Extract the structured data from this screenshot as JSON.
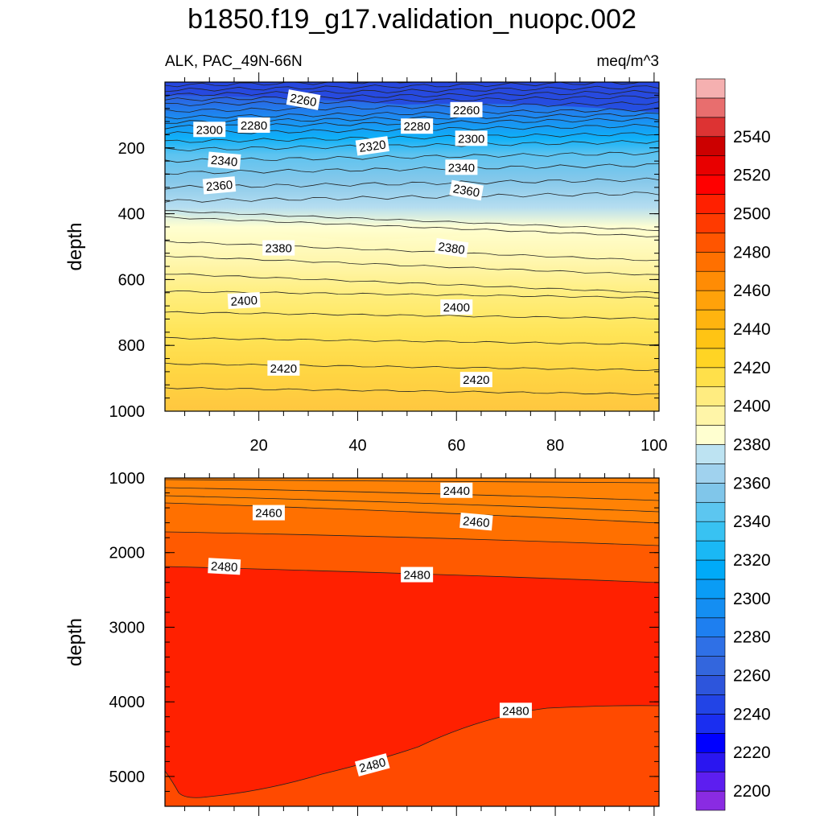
{
  "chart_data": {
    "type": "contour",
    "title": "b1850.f19_g17.validation_nuopc.002",
    "subtitle_left": "ALK, PAC_49N-66N",
    "subtitle_right": "meq/m^3",
    "x_ticks": [
      20,
      40,
      60,
      80,
      100
    ],
    "x_tick_labels": [
      "20",
      "40",
      "60",
      "80",
      "100"
    ],
    "xlim": [
      1,
      101
    ],
    "panels": [
      {
        "name": "upper",
        "ylabel": "depth",
        "ylim": [
          0,
          1000
        ],
        "y_ticks": [
          200,
          400,
          600,
          800,
          1000
        ],
        "y_tick_labels": [
          "200",
          "400",
          "600",
          "800",
          "1000"
        ],
        "contour_labels": [
          {
            "text": "2260",
            "x": 29,
            "y": 55,
            "angle": 10
          },
          {
            "text": "2260",
            "x": 62,
            "y": 85,
            "angle": 0
          },
          {
            "text": "2300",
            "x": 10,
            "y": 145,
            "angle": 0
          },
          {
            "text": "2280",
            "x": 19,
            "y": 132,
            "angle": 0
          },
          {
            "text": "2280",
            "x": 52,
            "y": 135,
            "angle": 0
          },
          {
            "text": "2300",
            "x": 63,
            "y": 172,
            "angle": 0
          },
          {
            "text": "2320",
            "x": 43,
            "y": 195,
            "angle": -8
          },
          {
            "text": "2340",
            "x": 13,
            "y": 240,
            "angle": 5
          },
          {
            "text": "2340",
            "x": 61,
            "y": 260,
            "angle": 0
          },
          {
            "text": "2360",
            "x": 12,
            "y": 315,
            "angle": -5
          },
          {
            "text": "2360",
            "x": 62,
            "y": 330,
            "angle": 10
          },
          {
            "text": "2380",
            "x": 24,
            "y": 505,
            "angle": 0
          },
          {
            "text": "2380",
            "x": 59,
            "y": 505,
            "angle": 8
          },
          {
            "text": "2400",
            "x": 17,
            "y": 665,
            "angle": -3
          },
          {
            "text": "2400",
            "x": 60,
            "y": 685,
            "angle": 0
          },
          {
            "text": "2420",
            "x": 25,
            "y": 870,
            "angle": 0
          },
          {
            "text": "2420",
            "x": 64,
            "y": 905,
            "angle": 0
          }
        ]
      },
      {
        "name": "lower",
        "ylabel": "depth",
        "ylim": [
          1000,
          5400
        ],
        "y_ticks": [
          1000,
          2000,
          3000,
          4000,
          5000
        ],
        "y_tick_labels": [
          "1000",
          "2000",
          "3000",
          "4000",
          "5000"
        ],
        "contour_labels": [
          {
            "text": "2440",
            "x": 60,
            "y": 1170,
            "angle": 0
          },
          {
            "text": "2460",
            "x": 22,
            "y": 1470,
            "angle": 0
          },
          {
            "text": "2460",
            "x": 64,
            "y": 1590,
            "angle": 5
          },
          {
            "text": "2480",
            "x": 13,
            "y": 2190,
            "angle": 3
          },
          {
            "text": "2480",
            "x": 52,
            "y": 2300,
            "angle": 0
          },
          {
            "text": "2480",
            "x": 72,
            "y": 4120,
            "angle": 0
          },
          {
            "text": "2480",
            "x": 43,
            "y": 4850,
            "angle": -15
          }
        ]
      }
    ],
    "colorbar": {
      "levels": [
        2190,
        2200,
        2210,
        2220,
        2230,
        2240,
        2250,
        2260,
        2270,
        2280,
        2290,
        2300,
        2310,
        2320,
        2330,
        2340,
        2350,
        2360,
        2370,
        2380,
        2390,
        2400,
        2410,
        2420,
        2430,
        2440,
        2450,
        2460,
        2470,
        2480,
        2490,
        2500,
        2510,
        2520,
        2530,
        2540,
        2550,
        2560
      ],
      "colors": [
        "#8a2be2",
        "#5d1ef0",
        "#2a16f0",
        "#0000ff",
        "#1a2ef0",
        "#2244e6",
        "#2d55dc",
        "#3366dd",
        "#2f70e6",
        "#1e7ff0",
        "#148ef2",
        "#0a9cf5",
        "#00aaf8",
        "#1ab8f5",
        "#38c2f2",
        "#5cc6f0",
        "#80c6ea",
        "#a0d2ee",
        "#bde3f2",
        "#ffffd0",
        "#fff5a8",
        "#ffec80",
        "#ffe04a",
        "#ffd424",
        "#ffc414",
        "#ffb40f",
        "#ffa20a",
        "#ff8c05",
        "#ff7000",
        "#ff5500",
        "#ff3a00",
        "#ff2000",
        "#ff0000",
        "#e80000",
        "#cc0000",
        "#dd3333",
        "#e86e6e",
        "#f5b0b0"
      ],
      "tick_labels": [
        "2200",
        "2220",
        "2240",
        "2260",
        "2280",
        "2300",
        "2320",
        "2340",
        "2360",
        "2380",
        "2400",
        "2420",
        "2440",
        "2460",
        "2480",
        "2500",
        "2520",
        "2540"
      ]
    }
  }
}
